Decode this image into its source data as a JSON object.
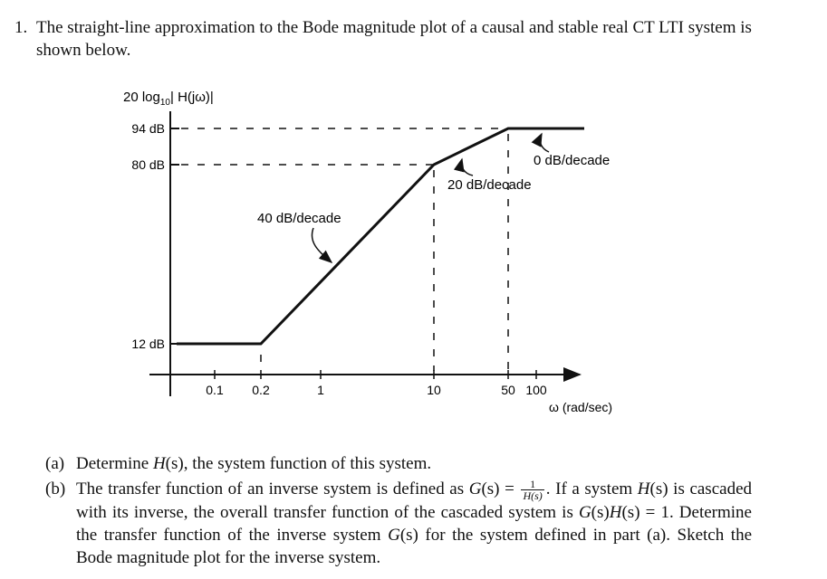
{
  "problem": {
    "number": "1.",
    "intro": "The straight-line approximation to the Bode magnitude plot of a causal and stable real CT LTI system is shown below."
  },
  "chart_data": {
    "type": "line",
    "ylabel": "20 log10 | H(jω)|",
    "xlabel": "ω (rad/sec)",
    "x_scale": "log",
    "x_tick_labels": [
      "0.1",
      "0.2",
      "1",
      "10",
      "50",
      "100"
    ],
    "y_tick_labels": [
      "12 dB",
      "80 dB",
      "94 dB"
    ],
    "series": [
      {
        "x": [
          0.03,
          0.2,
          10,
          50,
          160
        ],
        "y": [
          12,
          12,
          80,
          94,
          94
        ]
      }
    ],
    "annotations": [
      "40 dB/decade",
      "20 dB/decade",
      "0 dB/decade"
    ],
    "grid": false
  },
  "questions": [
    {
      "label": "(a)",
      "pre": "Determine ",
      "H": "H",
      "s1": "(s)",
      "post": ", the system function of this system."
    },
    {
      "label": "(b)",
      "t1": "The transfer function of an inverse system is defined as ",
      "G": "G",
      "s": "(s)",
      "eq": " = ",
      "frac_num": "1",
      "frac_den": "H(s)",
      "t2": ". If a system ",
      "t3": " is cascaded with its inverse, the overall transfer function of the cascaded system is ",
      "t4": " = 1. Determine the transfer function of the inverse system ",
      "t5": " for the system defined in part (a). Sketch the Bode magnitude plot for the inverse system."
    }
  ]
}
